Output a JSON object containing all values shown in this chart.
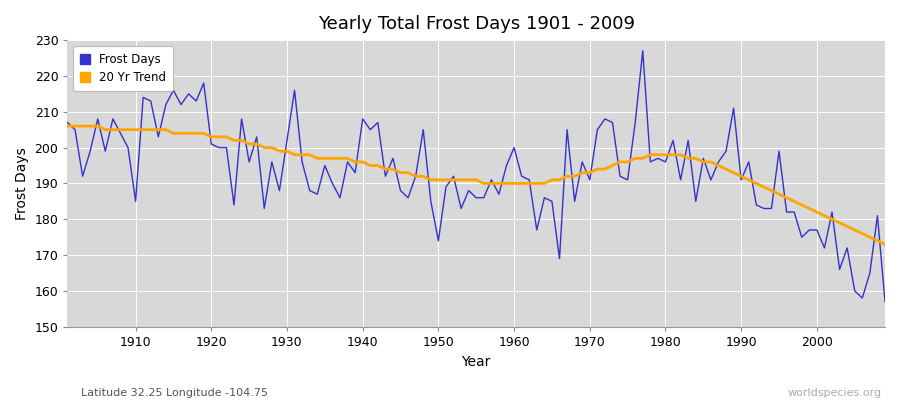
{
  "title": "Yearly Total Frost Days 1901 - 2009",
  "xlabel": "Year",
  "ylabel": "Frost Days",
  "subtitle_left": "Latitude 32.25 Longitude -104.75",
  "subtitle_right": "worldspecies.org",
  "line_color": "#3333cc",
  "trend_color": "#FFA500",
  "bg_color": "#d8d8d8",
  "ylim": [
    150,
    230
  ],
  "xlim": [
    1901,
    2009
  ],
  "yticks": [
    150,
    160,
    170,
    180,
    190,
    200,
    210,
    220,
    230
  ],
  "xticks": [
    1910,
    1920,
    1930,
    1940,
    1950,
    1960,
    1970,
    1980,
    1990,
    2000
  ],
  "years": [
    1901,
    1902,
    1903,
    1904,
    1905,
    1906,
    1907,
    1908,
    1909,
    1910,
    1911,
    1912,
    1913,
    1914,
    1915,
    1916,
    1917,
    1918,
    1919,
    1920,
    1921,
    1922,
    1923,
    1924,
    1925,
    1926,
    1927,
    1928,
    1929,
    1930,
    1931,
    1932,
    1933,
    1934,
    1935,
    1936,
    1937,
    1938,
    1939,
    1940,
    1941,
    1942,
    1943,
    1944,
    1945,
    1946,
    1947,
    1948,
    1949,
    1950,
    1951,
    1952,
    1953,
    1954,
    1955,
    1956,
    1957,
    1958,
    1959,
    1960,
    1961,
    1962,
    1963,
    1964,
    1965,
    1966,
    1967,
    1968,
    1969,
    1970,
    1971,
    1972,
    1973,
    1974,
    1975,
    1976,
    1977,
    1978,
    1979,
    1980,
    1981,
    1982,
    1983,
    1984,
    1985,
    1986,
    1987,
    1988,
    1989,
    1990,
    1991,
    1992,
    1993,
    1994,
    1995,
    1996,
    1997,
    1998,
    1999,
    2000,
    2001,
    2002,
    2003,
    2004,
    2005,
    2006,
    2007,
    2008,
    2009
  ],
  "frost_days": [
    207,
    205,
    192,
    199,
    208,
    199,
    208,
    204,
    200,
    185,
    214,
    213,
    203,
    212,
    216,
    212,
    215,
    213,
    218,
    201,
    200,
    200,
    184,
    208,
    196,
    203,
    183,
    196,
    188,
    202,
    216,
    196,
    188,
    187,
    195,
    190,
    186,
    196,
    193,
    208,
    205,
    207,
    192,
    197,
    188,
    186,
    192,
    205,
    185,
    174,
    189,
    192,
    183,
    188,
    186,
    186,
    191,
    187,
    195,
    200,
    192,
    191,
    177,
    186,
    185,
    169,
    205,
    185,
    196,
    191,
    205,
    208,
    207,
    192,
    191,
    207,
    227,
    196,
    197,
    196,
    202,
    191,
    202,
    185,
    197,
    191,
    196,
    199,
    211,
    191,
    196,
    184,
    183,
    183,
    199,
    182,
    182,
    175,
    177,
    177,
    172,
    182,
    166,
    172,
    160,
    158,
    165,
    181,
    157
  ],
  "trend_vals": [
    206,
    206,
    206,
    206,
    206,
    205,
    205,
    205,
    205,
    205,
    205,
    205,
    205,
    205,
    204,
    204,
    204,
    204,
    204,
    203,
    203,
    203,
    202,
    202,
    201,
    201,
    200,
    200,
    199,
    199,
    198,
    198,
    198,
    197,
    197,
    197,
    197,
    197,
    196,
    196,
    195,
    195,
    194,
    194,
    193,
    193,
    192,
    192,
    191,
    191,
    191,
    191,
    191,
    191,
    191,
    190,
    190,
    190,
    190,
    190,
    190,
    190,
    190,
    190,
    191,
    191,
    192,
    192,
    193,
    193,
    194,
    194,
    195,
    196,
    196,
    197,
    197,
    198,
    198,
    198,
    198,
    198,
    197,
    197,
    196,
    196,
    195,
    194,
    193,
    192,
    191,
    190,
    189,
    188,
    187,
    186,
    185,
    184,
    183,
    182,
    181,
    180,
    179,
    178,
    177,
    176,
    175,
    174,
    173
  ]
}
